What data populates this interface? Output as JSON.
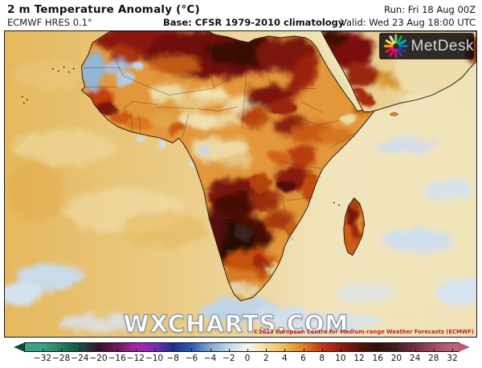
{
  "header": {
    "title": "2 m Temperature Anomaly (°C)",
    "model": "ECMWF HRES 0.1°",
    "base": "Base: CFSR 1979-2010 climatology",
    "run": "Run: Fri 18 Aug 00Z",
    "valid": "Valid: Wed 23 Aug 18:00 UTC"
  },
  "map": {
    "watermark": "WXCHARTS.COM",
    "copyright": "©2023 European Centre for Medium-range Weather Forecasts (ECMWF)",
    "logo_text": "MetDesk",
    "logo_icon": "pinwheel-star-icon"
  },
  "colorbar": {
    "unit": "°C",
    "values": [
      -32,
      -28,
      -24,
      -20,
      -16,
      -12,
      -10,
      -8,
      -6,
      -4,
      -2,
      0,
      2,
      4,
      6,
      8,
      10,
      12,
      16,
      20,
      24,
      28,
      32
    ],
    "colors": [
      "#38a486",
      "#20805f",
      "#145040",
      "#38122f",
      "#6e1858",
      "#a827ad",
      "#7a2dbd",
      "#202e8c",
      "#2f5cb5",
      "#7ea6d4",
      "#c3d9ec",
      "#f9f6ee",
      "#f3dea0",
      "#edb952",
      "#e08122",
      "#c93710",
      "#911c0c",
      "#5c120b",
      "#2f100d",
      "#44201f",
      "#733042",
      "#a04a5e",
      "#c0607a"
    ],
    "left_arrow_color": "#12493a",
    "right_arrow_color": "#b95a74"
  }
}
